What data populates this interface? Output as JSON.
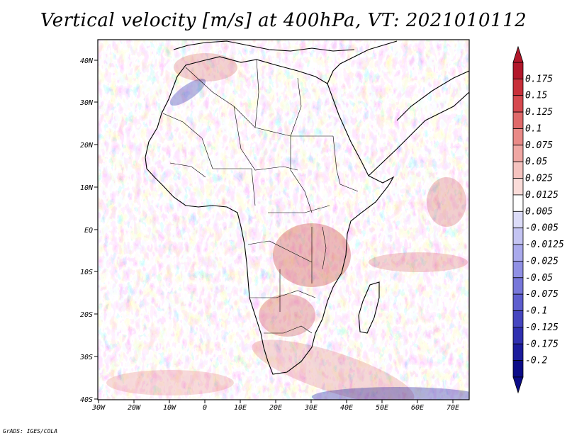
{
  "title": "Vertical velocity [m/s] at 400hPa, VT: 2021010112",
  "credit": "GrADS: IGES/COLA",
  "map": {
    "lon_range": [
      -30,
      75
    ],
    "lat_range": [
      -40,
      45
    ],
    "lat_ticks": [
      "40N",
      "30N",
      "20N",
      "10N",
      "EQ",
      "10S",
      "20S",
      "30S",
      "40S"
    ],
    "lon_ticks": [
      "30W",
      "20W",
      "10W",
      "0",
      "10E",
      "20E",
      "30E",
      "40E",
      "50E",
      "60E",
      "70E"
    ]
  },
  "colorbar": {
    "labels": [
      "0.175",
      "0.15",
      "0.125",
      "0.1",
      "0.075",
      "0.05",
      "0.025",
      "0.0125",
      "0.005",
      "-0.005",
      "-0.0125",
      "-0.025",
      "-0.05",
      "-0.075",
      "-0.1",
      "-0.125",
      "-0.175",
      "-0.2"
    ],
    "colors": [
      "#b2182b",
      "#c8303a",
      "#d6494f",
      "#e06a6a",
      "#e98a87",
      "#f0a7a3",
      "#f5c3bf",
      "#fadcd9",
      "#ffffff",
      "#dcdcf8",
      "#c4c4f2",
      "#aaaaec",
      "#9090e4",
      "#7777da",
      "#5e5ece",
      "#4646c0",
      "#3030b0",
      "#1c1c9c",
      "#0c0c88"
    ]
  }
}
